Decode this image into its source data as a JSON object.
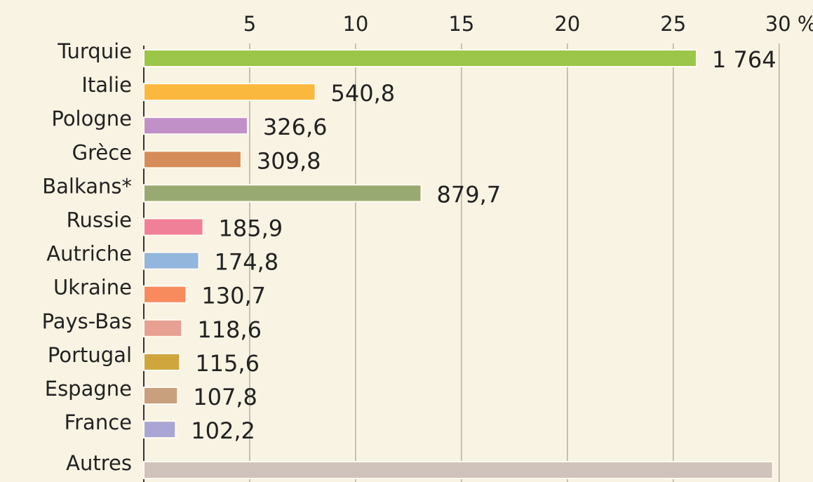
{
  "chart_data": {
    "type": "barh",
    "categories": [
      "Turquie",
      "Italie",
      "Pologne",
      "Grèce",
      "Balkans*",
      "Russie",
      "Autriche",
      "Ukraine",
      "Pays-Bas",
      "Portugal",
      "Espagne",
      "France",
      "Autres"
    ],
    "values": [
      26.1,
      8.1,
      4.9,
      4.6,
      13.1,
      2.8,
      2.6,
      2.0,
      1.8,
      1.7,
      1.6,
      1.5,
      29.7
    ],
    "data_labels": [
      {
        "value": 1764,
        "label": "1 764"
      },
      {
        "value": 540.8,
        "label": "540,8"
      },
      {
        "value": 326.6,
        "label": "326,6"
      },
      {
        "value": 309.8,
        "label": "309,8"
      },
      {
        "value": 879.7,
        "label": "879,7"
      },
      {
        "value": 185.9,
        "label": "185,9"
      },
      {
        "value": 174.8,
        "label": "174,8"
      },
      {
        "value": 130.7,
        "label": "130,7"
      },
      {
        "value": 118.6,
        "label": "118,6"
      },
      {
        "value": 115.6,
        "label": "115,6"
      },
      {
        "value": 107.8,
        "label": "107,8"
      },
      {
        "value": 102.2,
        "label": "102,2"
      },
      null
    ],
    "colors": [
      "#9cc64a",
      "#fbb83f",
      "#c290c9",
      "#d68c58",
      "#98aa72",
      "#f07f98",
      "#93b6dd",
      "#f88b5e",
      "#e6a192",
      "#cfa63e",
      "#c9a07e",
      "#a9a6d6",
      "#cfc3bb"
    ],
    "xlim": [
      0,
      31.6
    ],
    "xticks": [
      5,
      10,
      15,
      20,
      25,
      {
        "value": 30,
        "label": "30 %"
      }
    ],
    "grid": true
  }
}
